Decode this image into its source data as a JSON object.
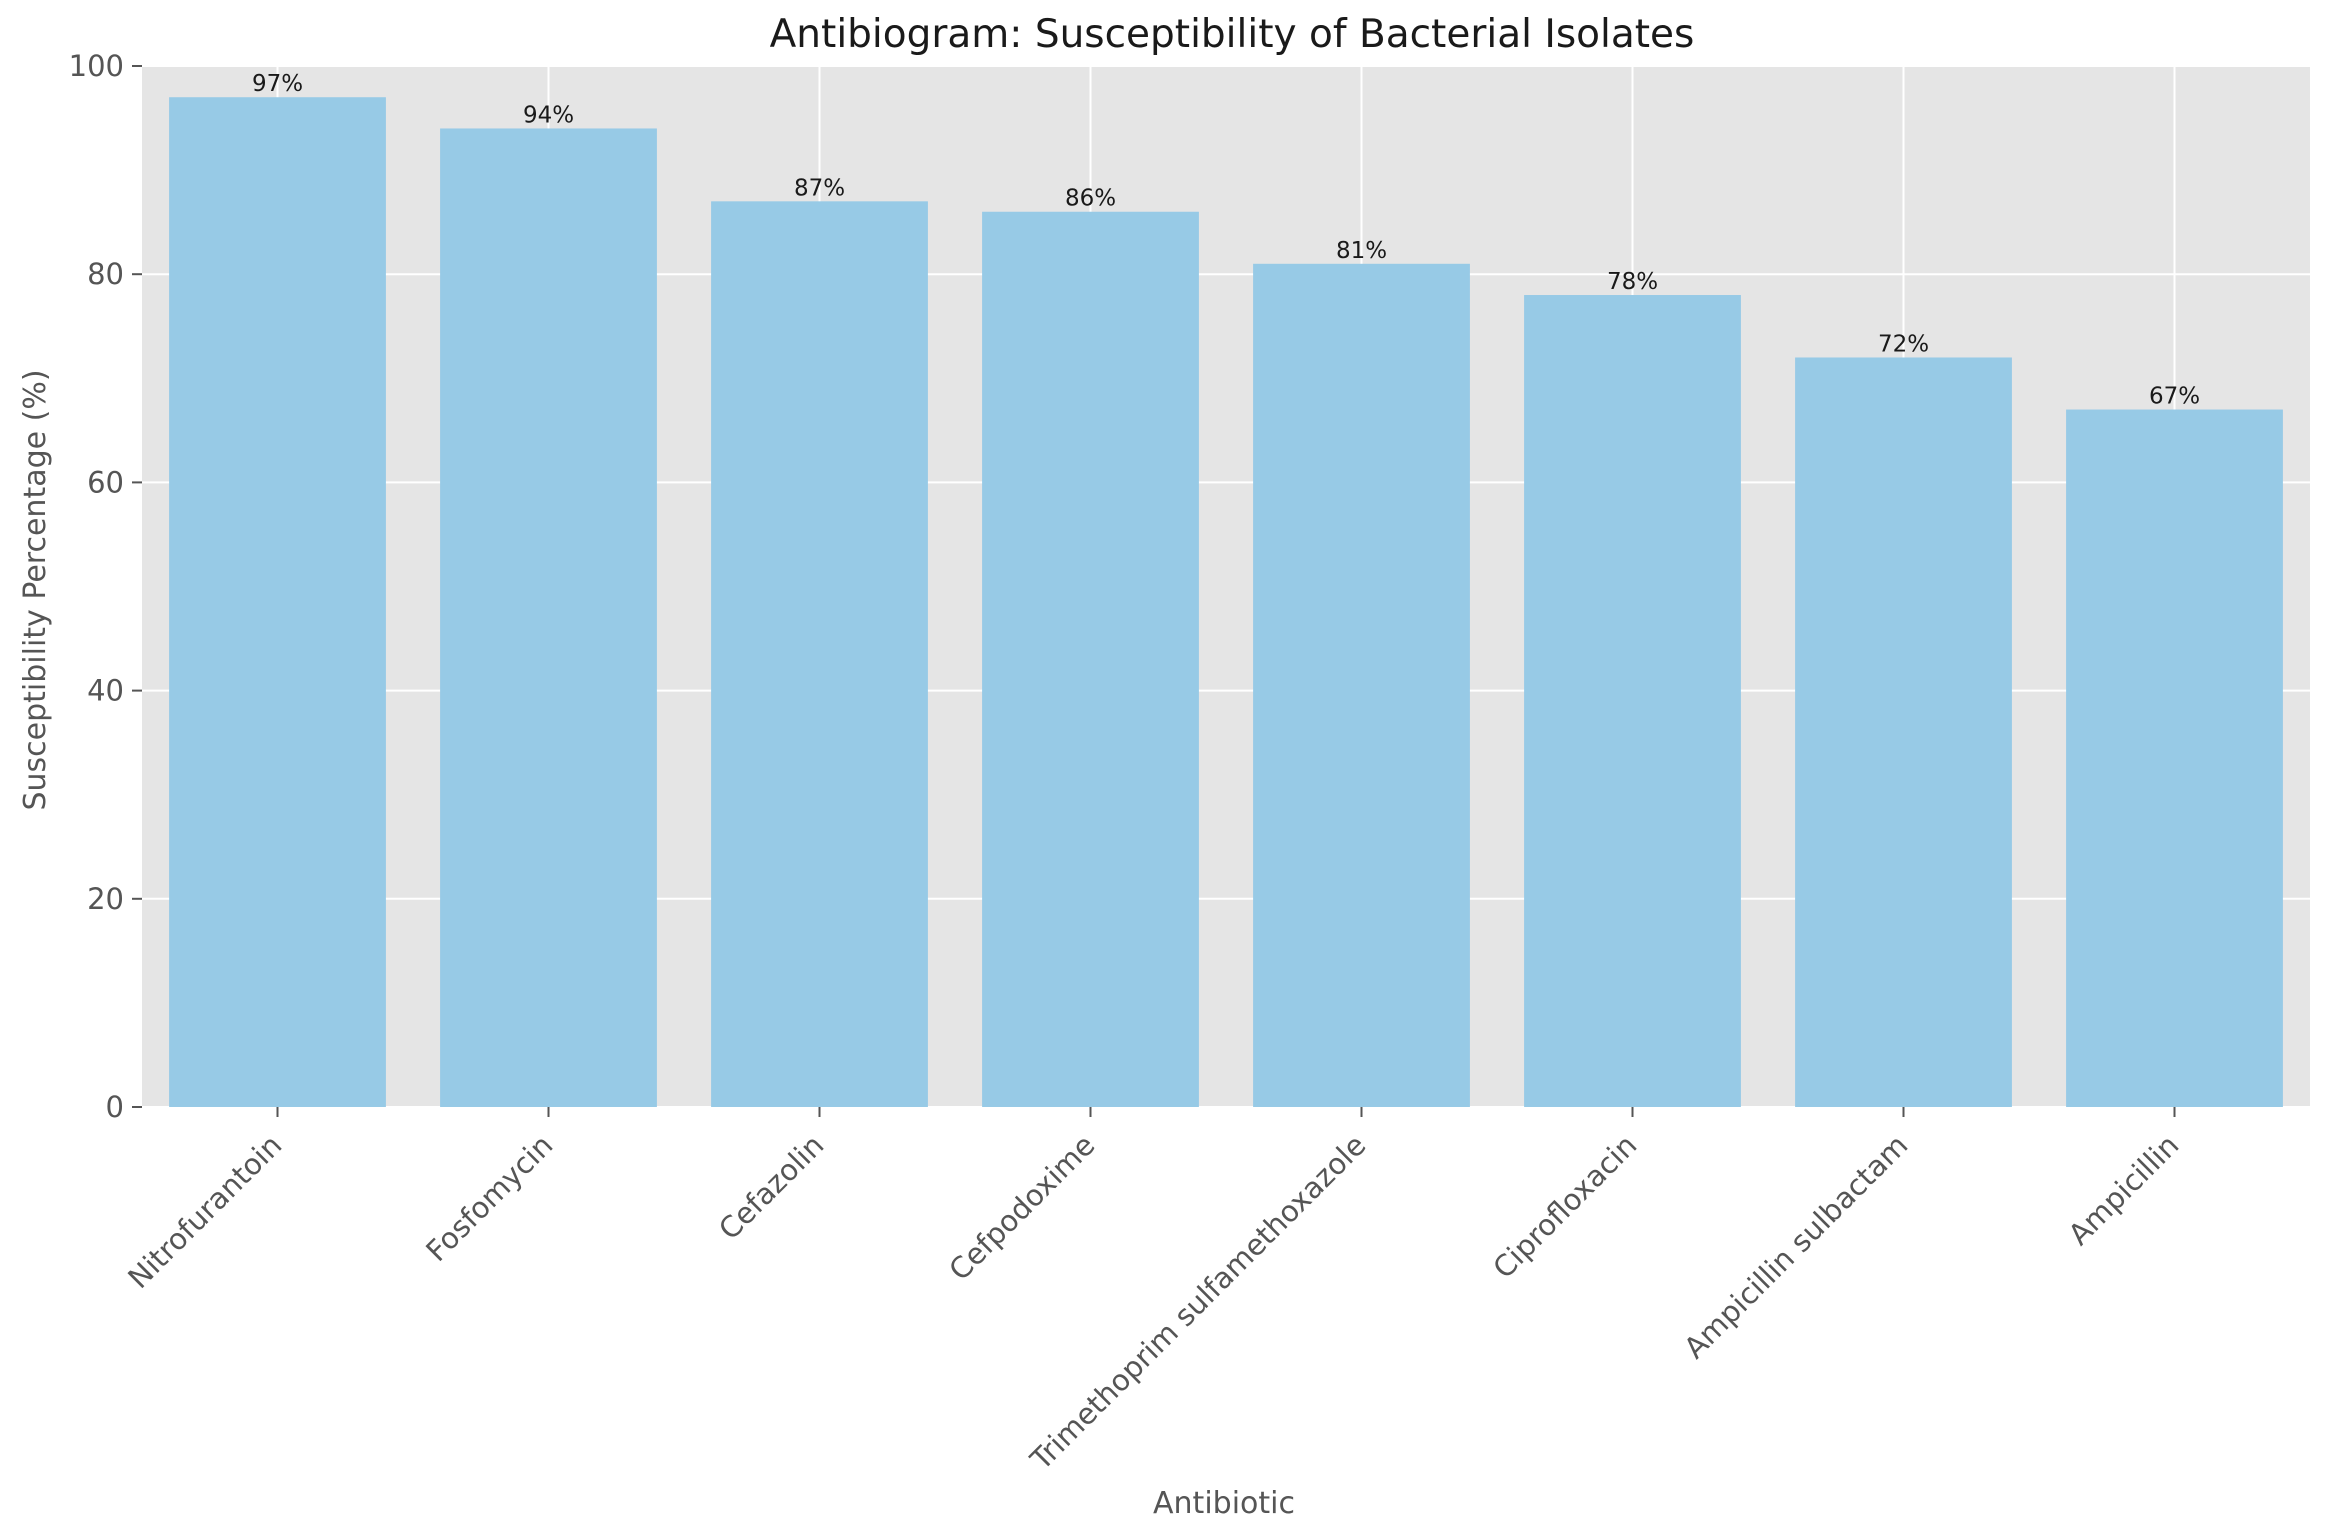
{
  "chart_data": {
    "type": "bar",
    "title": "Antibiogram: Susceptibility of Bacterial Isolates",
    "xlabel": "Antibiotic",
    "ylabel": "Susceptibility Percentage (%)",
    "categories": [
      "Nitrofurantoin",
      "Fosfomycin",
      "Cefazolin",
      "Cefpodoxime",
      "Trimethoprim sulfamethoxazole",
      "Ciprofloxacin",
      "Ampicillin sulbactam",
      "Ampicillin"
    ],
    "values": [
      97,
      94,
      87,
      86,
      81,
      78,
      72,
      67
    ],
    "data_labels": [
      "97%",
      "94%",
      "87%",
      "86%",
      "81%",
      "78%",
      "72%",
      "67%"
    ],
    "ylim": [
      0,
      100
    ],
    "yticks": [
      0,
      20,
      40,
      60,
      80,
      100
    ],
    "grid": true,
    "colors": {
      "bar": "#97cae6",
      "plot_background": "#e5e5e5",
      "grid": "#ffffff"
    }
  }
}
